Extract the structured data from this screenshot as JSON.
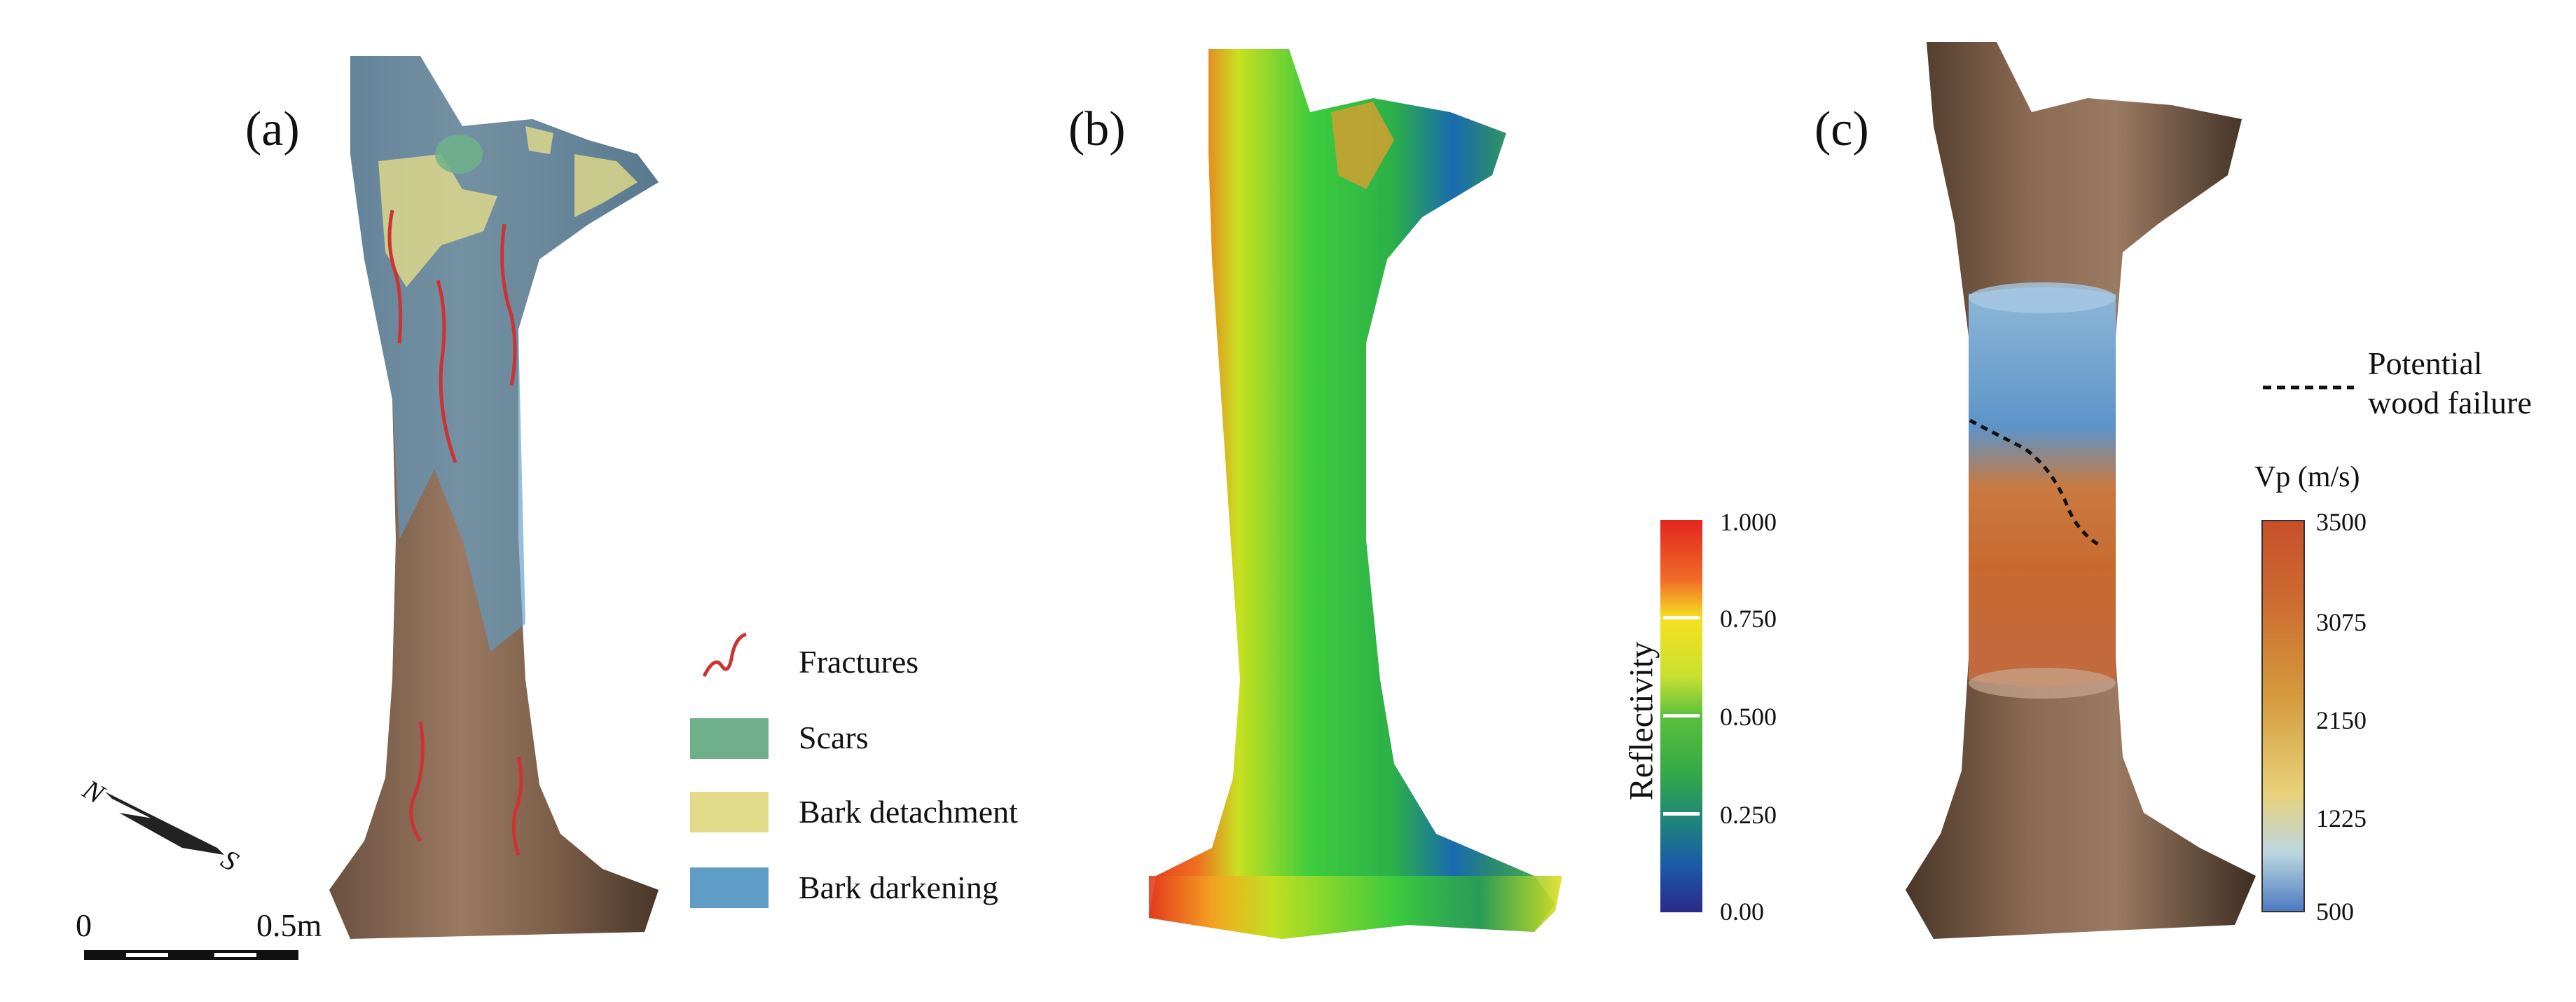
{
  "panels": {
    "a": {
      "label": "(a)"
    },
    "b": {
      "label": "(b)"
    },
    "c": {
      "label": "(c)"
    }
  },
  "compass": {
    "north": "N",
    "south": "S"
  },
  "scale_bar": {
    "start_label": "0",
    "end_label": "0.5m"
  },
  "legend_a": {
    "items": [
      {
        "label": "Fractures",
        "color": "#cc3333"
      },
      {
        "label": "Scars",
        "color": "#6fb08a"
      },
      {
        "label": "Bark detachment",
        "color": "#e2dc8a"
      },
      {
        "label": "Bark darkening",
        "color": "#5f9cc6"
      }
    ]
  },
  "colorbar_b": {
    "title": "Reflectivity",
    "ticks": [
      "1.000",
      "0.750",
      "0.500",
      "0.250",
      "0.00"
    ]
  },
  "legend_c": {
    "failure_label_line1": "Potential",
    "failure_label_line2": "wood failure",
    "colorbar_title": "Vp (m/s)",
    "ticks": [
      "3500",
      "3075",
      "2150",
      "1225",
      "500"
    ]
  }
}
